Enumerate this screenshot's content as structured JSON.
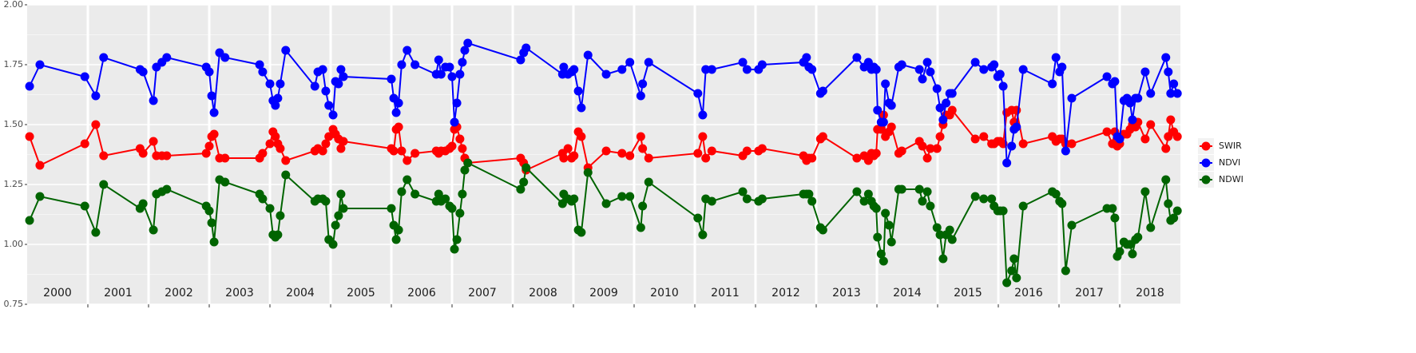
{
  "chart_data": {
    "type": "line",
    "x": [
      2000.04,
      2000.21,
      2000.95,
      2001.13,
      2001.26,
      2001.86,
      2001.91,
      2002.08,
      2002.13,
      2002.22,
      2002.3,
      2002.95,
      2003.0,
      2003.04,
      2003.08,
      2003.17,
      2003.26,
      2003.83,
      2003.88,
      2004.0,
      2004.05,
      2004.09,
      2004.13,
      2004.17,
      2004.26,
      2004.74,
      2004.79,
      2004.87,
      2004.92,
      2004.97,
      2005.04,
      2005.08,
      2005.13,
      2005.17,
      2005.21,
      2006.0,
      2006.04,
      2006.08,
      2006.12,
      2006.17,
      2006.26,
      2006.39,
      2006.74,
      2006.78,
      2006.82,
      2006.89,
      2006.96,
      2007.0,
      2007.04,
      2007.08,
      2007.13,
      2007.17,
      2007.21,
      2007.26,
      2008.13,
      2008.18,
      2008.22,
      2008.82,
      2008.84,
      2008.91,
      2008.97,
      2009.01,
      2009.08,
      2009.13,
      2009.24,
      2009.54,
      2009.8,
      2009.93,
      2010.11,
      2010.14,
      2010.24,
      2011.05,
      2011.13,
      2011.18,
      2011.28,
      2011.79,
      2011.86,
      2012.05,
      2012.11,
      2012.79,
      2012.84,
      2012.88,
      2012.93,
      2013.07,
      2013.11,
      2013.67,
      2013.79,
      2013.86,
      2013.91,
      2013.95,
      2013.99,
      2014.01,
      2014.07,
      2014.11,
      2014.14,
      2014.2,
      2014.24,
      2014.36,
      2014.41,
      2014.7,
      2014.75,
      2014.83,
      2014.88,
      2014.99,
      2015.04,
      2015.09,
      2015.14,
      2015.2,
      2015.24,
      2015.62,
      2015.76,
      2015.89,
      2015.93,
      2015.99,
      2016.03,
      2016.08,
      2016.14,
      2016.22,
      2016.26,
      2016.3,
      2016.41,
      2016.89,
      2016.95,
      2017.01,
      2017.05,
      2017.11,
      2017.21,
      2017.79,
      2017.88,
      2017.92,
      2017.96,
      2018.0,
      2018.07,
      2018.12,
      2018.17,
      2018.21,
      2018.26,
      2018.3,
      2018.42,
      2018.51,
      2018.76,
      2018.8,
      2018.84,
      2018.89,
      2018.95
    ],
    "series": [
      {
        "name": "SWIR",
        "color": "#ff0000",
        "values": [
          1.45,
          1.33,
          1.42,
          1.5,
          1.37,
          1.4,
          1.38,
          1.43,
          1.37,
          1.37,
          1.37,
          1.38,
          1.41,
          1.45,
          1.46,
          1.36,
          1.36,
          1.36,
          1.38,
          1.42,
          1.47,
          1.45,
          1.42,
          1.4,
          1.35,
          1.39,
          1.4,
          1.39,
          1.42,
          1.45,
          1.48,
          1.46,
          1.44,
          1.4,
          1.43,
          1.4,
          1.39,
          1.48,
          1.49,
          1.39,
          1.35,
          1.38,
          1.39,
          1.38,
          1.39,
          1.39,
          1.4,
          1.41,
          1.48,
          1.49,
          1.44,
          1.4,
          1.36,
          1.34,
          1.36,
          1.34,
          1.31,
          1.38,
          1.36,
          1.4,
          1.36,
          1.37,
          1.47,
          1.45,
          1.32,
          1.39,
          1.38,
          1.37,
          1.45,
          1.4,
          1.36,
          1.38,
          1.45,
          1.36,
          1.39,
          1.37,
          1.39,
          1.39,
          1.4,
          1.37,
          1.35,
          1.36,
          1.36,
          1.44,
          1.45,
          1.36,
          1.37,
          1.35,
          1.38,
          1.37,
          1.38,
          1.48,
          1.48,
          1.54,
          1.45,
          1.47,
          1.49,
          1.38,
          1.39,
          1.43,
          1.41,
          1.36,
          1.4,
          1.4,
          1.45,
          1.5,
          1.54,
          1.54,
          1.56,
          1.44,
          1.45,
          1.42,
          1.42,
          1.43,
          1.43,
          1.42,
          1.55,
          1.56,
          1.51,
          1.56,
          1.42,
          1.45,
          1.43,
          1.44,
          1.44,
          1.42,
          1.42,
          1.47,
          1.42,
          1.47,
          1.41,
          1.42,
          1.46,
          1.46,
          1.48,
          1.5,
          1.49,
          1.51,
          1.44,
          1.5,
          1.4,
          1.45,
          1.52,
          1.47,
          1.45
        ]
      },
      {
        "name": "NDVI",
        "color": "#0000ff",
        "values": [
          1.66,
          1.75,
          1.7,
          1.62,
          1.78,
          1.73,
          1.72,
          1.6,
          1.74,
          1.76,
          1.78,
          1.74,
          1.72,
          1.62,
          1.55,
          1.8,
          1.78,
          1.75,
          1.72,
          1.67,
          1.6,
          1.58,
          1.61,
          1.67,
          1.81,
          1.66,
          1.72,
          1.73,
          1.64,
          1.58,
          1.54,
          1.68,
          1.67,
          1.73,
          1.7,
          1.69,
          1.61,
          1.55,
          1.59,
          1.75,
          1.81,
          1.75,
          1.71,
          1.77,
          1.71,
          1.74,
          1.74,
          1.7,
          1.51,
          1.59,
          1.71,
          1.76,
          1.81,
          1.84,
          1.77,
          1.8,
          1.82,
          1.71,
          1.74,
          1.71,
          1.72,
          1.73,
          1.64,
          1.57,
          1.79,
          1.71,
          1.73,
          1.76,
          1.62,
          1.67,
          1.76,
          1.63,
          1.54,
          1.73,
          1.73,
          1.76,
          1.73,
          1.73,
          1.75,
          1.76,
          1.78,
          1.74,
          1.73,
          1.63,
          1.64,
          1.78,
          1.74,
          1.76,
          1.73,
          1.74,
          1.73,
          1.56,
          1.51,
          1.51,
          1.67,
          1.59,
          1.58,
          1.74,
          1.75,
          1.73,
          1.69,
          1.76,
          1.72,
          1.65,
          1.57,
          1.52,
          1.59,
          1.63,
          1.63,
          1.76,
          1.73,
          1.74,
          1.75,
          1.7,
          1.71,
          1.66,
          1.34,
          1.41,
          1.48,
          1.49,
          1.73,
          1.67,
          1.78,
          1.72,
          1.74,
          1.39,
          1.61,
          1.7,
          1.67,
          1.68,
          1.45,
          1.44,
          1.6,
          1.61,
          1.59,
          1.52,
          1.61,
          1.61,
          1.72,
          1.63,
          1.78,
          1.72,
          1.63,
          1.67,
          1.63
        ]
      },
      {
        "name": "NDWI",
        "color": "#006400",
        "values": [
          1.1,
          1.2,
          1.16,
          1.05,
          1.25,
          1.15,
          1.17,
          1.06,
          1.21,
          1.22,
          1.23,
          1.16,
          1.14,
          1.09,
          1.01,
          1.27,
          1.26,
          1.21,
          1.19,
          1.15,
          1.04,
          1.03,
          1.04,
          1.12,
          1.29,
          1.18,
          1.19,
          1.19,
          1.18,
          1.02,
          1.0,
          1.08,
          1.12,
          1.21,
          1.15,
          1.15,
          1.08,
          1.02,
          1.06,
          1.22,
          1.27,
          1.21,
          1.18,
          1.21,
          1.18,
          1.19,
          1.16,
          1.15,
          0.98,
          1.02,
          1.13,
          1.21,
          1.31,
          1.34,
          1.23,
          1.26,
          1.32,
          1.17,
          1.21,
          1.19,
          1.18,
          1.19,
          1.06,
          1.05,
          1.3,
          1.17,
          1.2,
          1.2,
          1.07,
          1.16,
          1.26,
          1.11,
          1.04,
          1.19,
          1.18,
          1.22,
          1.19,
          1.18,
          1.19,
          1.21,
          1.21,
          1.21,
          1.18,
          1.07,
          1.06,
          1.22,
          1.18,
          1.21,
          1.18,
          1.16,
          1.15,
          1.03,
          0.96,
          0.93,
          1.13,
          1.08,
          1.01,
          1.23,
          1.23,
          1.23,
          1.18,
          1.22,
          1.16,
          1.07,
          1.04,
          0.94,
          1.04,
          1.06,
          1.02,
          1.2,
          1.19,
          1.19,
          1.16,
          1.14,
          1.14,
          1.14,
          0.84,
          0.89,
          0.94,
          0.86,
          1.16,
          1.22,
          1.21,
          1.18,
          1.17,
          0.89,
          1.08,
          1.15,
          1.15,
          1.11,
          0.95,
          0.97,
          1.01,
          1.0,
          1.0,
          0.96,
          1.02,
          1.03,
          1.22,
          1.07,
          1.27,
          1.17,
          1.1,
          1.11,
          1.14
        ]
      }
    ],
    "xlim": [
      2000,
      2019
    ],
    "xticks": [
      2001,
      2002,
      2003,
      2004,
      2005,
      2006,
      2007,
      2008,
      2009,
      2010,
      2011,
      2012,
      2013,
      2014,
      2015,
      2016,
      2017,
      2018
    ],
    "years": [
      2000,
      2001,
      2002,
      2003,
      2004,
      2005,
      2006,
      2007,
      2008,
      2009,
      2010,
      2011,
      2012,
      2013,
      2014,
      2015,
      2016,
      2017,
      2018
    ],
    "ylim": [
      0.75,
      2.0
    ],
    "yticks": [
      0.75,
      {
        "value": 1,
        "label": "1.00"
      },
      1.25,
      {
        "value": 1.5,
        "label": "1.50"
      },
      1.75,
      {
        "value": 2,
        "label": "2.00"
      }
    ],
    "y_minor_grid": [
      0.875,
      1.125,
      1.375,
      1.625,
      1.875
    ],
    "grid": true,
    "legend": "right"
  }
}
